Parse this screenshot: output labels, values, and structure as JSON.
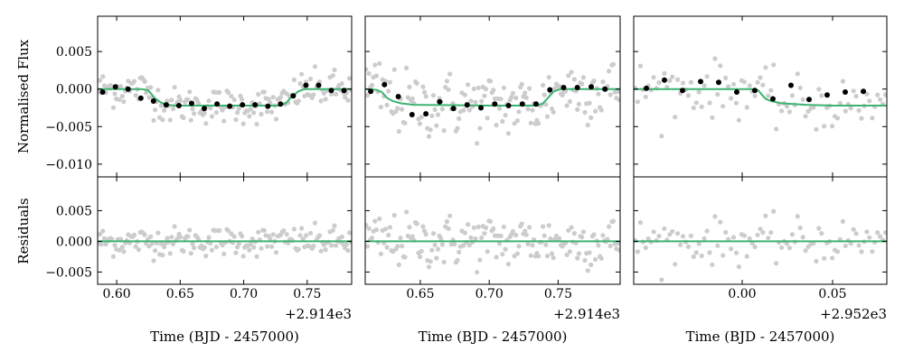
{
  "figure": {
    "ylabel_top": "Normalised Flux",
    "ylabel_bottom": "Residuals",
    "colors": {
      "raw_points": "#cccccc",
      "binned_points": "#000000",
      "model": "#3cb371",
      "residual_line": "#3cb371",
      "frame": "#000000"
    }
  },
  "chart_data": [
    {
      "type": "scatter",
      "panel": 1,
      "xlabel": "Time (BJD - 2457000)",
      "offset_label": "+2.914e3",
      "xlim": [
        0.585,
        0.785
      ],
      "xticks": [
        0.6,
        0.65,
        0.7,
        0.75
      ],
      "xtick_labels": [
        "0.60",
        "0.65",
        "0.70",
        "0.75"
      ],
      "flux": {
        "ylim": [
          -0.0117,
          0.0097
        ],
        "yticks": [
          0.005,
          0.0,
          -0.005,
          -0.01
        ],
        "ytick_labels": [
          "0.005",
          "0.000",
          "−0.005",
          "−0.010"
        ],
        "binned_x": [
          0.589,
          0.599,
          0.609,
          0.619,
          0.629,
          0.639,
          0.649,
          0.659,
          0.669,
          0.679,
          0.689,
          0.699,
          0.709,
          0.719,
          0.729,
          0.739,
          0.749,
          0.759,
          0.769,
          0.779
        ],
        "binned_y": [
          -0.0004,
          0.0003,
          0.0,
          -0.0012,
          -0.0016,
          -0.0021,
          -0.0022,
          -0.0019,
          -0.0026,
          -0.002,
          -0.0023,
          -0.0021,
          -0.0021,
          -0.0023,
          -0.002,
          -0.0009,
          0.0005,
          0.0005,
          -0.0002,
          -0.0002
        ],
        "model_x": [
          0.585,
          0.62,
          0.625,
          0.63,
          0.635,
          0.64,
          0.645,
          0.7,
          0.728,
          0.733,
          0.738,
          0.743,
          0.748,
          0.785
        ],
        "model_y": [
          0.0,
          0.0,
          -0.0002,
          -0.0012,
          -0.0018,
          -0.0021,
          -0.0022,
          -0.0022,
          -0.0022,
          -0.0019,
          -0.001,
          -0.0003,
          0.0,
          0.0
        ]
      },
      "residuals": {
        "ylim": [
          -0.007,
          0.0105
        ],
        "yticks": [
          0.005,
          0.0,
          -0.005
        ],
        "ytick_labels": [
          "0.005",
          "0.000",
          "−0.005"
        ],
        "model_y": 0.0
      }
    },
    {
      "type": "scatter",
      "panel": 2,
      "xlabel": "Time (BJD - 2457000)",
      "offset_label": "+2.914e3",
      "xlim": [
        0.61,
        0.795
      ],
      "xticks": [
        0.65,
        0.7,
        0.75
      ],
      "xtick_labels": [
        "0.65",
        "0.70",
        "0.75"
      ],
      "flux": {
        "ylim": [
          -0.0117,
          0.0097
        ],
        "binned_x": [
          0.614,
          0.624,
          0.634,
          0.644,
          0.654,
          0.664,
          0.674,
          0.684,
          0.694,
          0.704,
          0.714,
          0.724,
          0.734,
          0.744,
          0.754,
          0.764,
          0.774,
          0.784
        ],
        "binned_y": [
          -0.0003,
          0.0006,
          -0.001,
          -0.0034,
          -0.0033,
          -0.0017,
          -0.0026,
          -0.0021,
          -0.0025,
          -0.002,
          -0.0022,
          -0.002,
          -0.002,
          -0.0001,
          0.0002,
          0.0002,
          0.0003,
          0.0
        ],
        "model_x": [
          0.61,
          0.618,
          0.622,
          0.626,
          0.63,
          0.636,
          0.645,
          0.7,
          0.735,
          0.739,
          0.743,
          0.747,
          0.752,
          0.795
        ],
        "model_y": [
          0.0,
          -0.0001,
          -0.0004,
          -0.0012,
          -0.0016,
          -0.0019,
          -0.0021,
          -0.0022,
          -0.0022,
          -0.0019,
          -0.0011,
          -0.0003,
          0.0,
          0.0
        ]
      },
      "residuals": {
        "ylim": [
          -0.007,
          0.0105
        ],
        "model_y": 0.0
      }
    },
    {
      "type": "scatter",
      "panel": 3,
      "xlabel": "Time (BJD - 2457000)",
      "offset_label": "+2.952e3",
      "xlim": [
        -0.06,
        0.08
      ],
      "xticks": [
        0.0,
        0.05
      ],
      "xtick_labels": [
        "0.00",
        "0.05"
      ],
      "flux": {
        "ylim": [
          -0.0117,
          0.0097
        ],
        "binned_x": [
          -0.053,
          -0.043,
          -0.033,
          -0.023,
          -0.013,
          -0.003,
          0.007,
          0.017,
          0.027,
          0.037,
          0.047,
          0.057,
          0.067
        ],
        "binned_y": [
          0.0001,
          0.0012,
          -0.0002,
          0.001,
          0.0009,
          -0.0004,
          -0.0002,
          -0.0013,
          0.0005,
          -0.0014,
          -0.0008,
          -0.0004,
          -0.0003
        ],
        "model_x": [
          -0.06,
          0.007,
          0.009,
          0.011,
          0.013,
          0.016,
          0.022,
          0.035,
          0.05,
          0.08
        ],
        "model_y": [
          0.0,
          0.0,
          -0.0002,
          -0.0008,
          -0.0013,
          -0.0016,
          -0.0019,
          -0.0021,
          -0.0022,
          -0.0022
        ]
      },
      "residuals": {
        "ylim": [
          -0.007,
          0.0105
        ],
        "model_y": 0.0
      }
    }
  ]
}
